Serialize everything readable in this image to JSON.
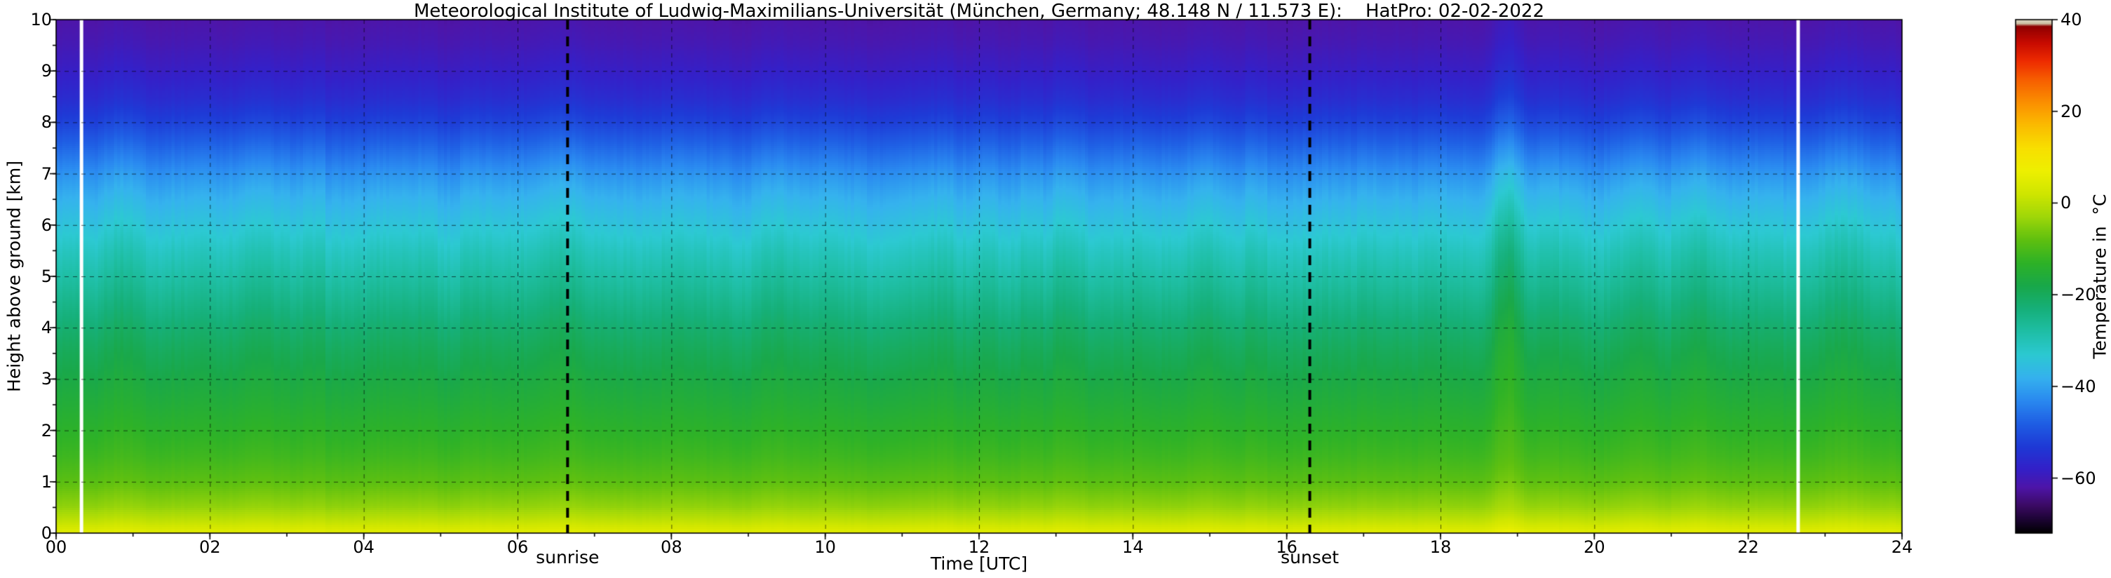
{
  "chart_data": {
    "type": "heatmap",
    "title": "Meteorological Institute of Ludwig-Maximilians-Universität (München, Germany; 48.148 N / 11.573 E):    HatPro: 02-02-2022",
    "xlabel": "Time [UTC]",
    "ylabel": "Height above ground [km]",
    "colorbar_label": "Temperature in  °C",
    "x_unit": "hours UTC",
    "x_range": [
      0,
      24
    ],
    "y_unit": "km",
    "y_range": [
      0,
      10
    ],
    "x_ticks": {
      "values": [
        0,
        2,
        4,
        6,
        8,
        10,
        12,
        14,
        16,
        18,
        20,
        22,
        24
      ],
      "labels": [
        "00",
        "02",
        "04",
        "06",
        "08",
        "10",
        "12",
        "14",
        "16",
        "18",
        "20",
        "22",
        "24"
      ]
    },
    "x_minor_step": 1,
    "y_ticks": {
      "values": [
        0,
        1,
        2,
        3,
        4,
        5,
        6,
        7,
        8,
        9,
        10
      ],
      "labels": [
        "0",
        "1",
        "2",
        "3",
        "4",
        "5",
        "6",
        "7",
        "8",
        "9",
        "10"
      ]
    },
    "y_minor_step": 0.5,
    "grid": {
      "x_step": 2,
      "y_step": 1,
      "style": "dashed"
    },
    "colorbar": {
      "range": [
        -72,
        40
      ],
      "tick_values": [
        40,
        20,
        0,
        -20,
        -40,
        -60
      ],
      "tick_labels": [
        "40",
        "20",
        "0",
        "−20",
        "−40",
        "−60"
      ]
    },
    "colormap_stops": [
      [
        -72,
        "#000000"
      ],
      [
        -69,
        "#1c0433"
      ],
      [
        -66,
        "#3b0a63"
      ],
      [
        -62,
        "#4e15a8"
      ],
      [
        -58,
        "#3420c8"
      ],
      [
        -53,
        "#1e3ad6"
      ],
      [
        -48,
        "#1f5fe4"
      ],
      [
        -43,
        "#2a8af0"
      ],
      [
        -38,
        "#35b2ee"
      ],
      [
        -33,
        "#2cc9d2"
      ],
      [
        -28,
        "#1fbfa6"
      ],
      [
        -23,
        "#16b07a"
      ],
      [
        -18,
        "#19a84a"
      ],
      [
        -13,
        "#2eb227"
      ],
      [
        -8,
        "#5fc010"
      ],
      [
        -3,
        "#9fd709"
      ],
      [
        2,
        "#cfe600"
      ],
      [
        7,
        "#eef000"
      ],
      [
        12,
        "#f8e000"
      ],
      [
        17,
        "#fbbc00"
      ],
      [
        22,
        "#fb9000"
      ],
      [
        27,
        "#f75e00"
      ],
      [
        31,
        "#ee2c00"
      ],
      [
        35,
        "#c80b00"
      ],
      [
        38.6,
        "#8f0000"
      ],
      [
        39.2,
        "#cbbfa4"
      ],
      [
        40,
        "#ded7c2"
      ]
    ],
    "profile": {
      "heights_km": [
        0,
        0.2,
        0.5,
        1,
        1.5,
        2,
        2.5,
        3,
        3.5,
        4,
        4.5,
        5,
        5.5,
        6,
        6.5,
        7,
        7.5,
        8,
        8.5,
        9,
        9.5,
        10
      ],
      "temps_c": [
        5,
        1,
        -4,
        -8.5,
        -11.5,
        -13.5,
        -15.5,
        -17.5,
        -19.5,
        -22,
        -25,
        -28,
        -31,
        -34.5,
        -38,
        -42,
        -47,
        -52,
        -56,
        -58.5,
        -60.5,
        -62
      ]
    },
    "anomalies": [
      {
        "time": 0.9,
        "width": 0.25,
        "amp": 1.6
      },
      {
        "time": 2.7,
        "width": 0.2,
        "amp": 1.2
      },
      {
        "time": 6.55,
        "width": 0.3,
        "amp": 2.2
      },
      {
        "time": 9.3,
        "width": 0.2,
        "amp": 1.0
      },
      {
        "time": 13.05,
        "width": 0.12,
        "amp": 2.0
      },
      {
        "time": 14.9,
        "width": 0.25,
        "amp": 1.4
      },
      {
        "time": 18.88,
        "width": 0.22,
        "amp": 5.5
      },
      {
        "time": 19.6,
        "width": 0.3,
        "amp": 1.5
      },
      {
        "time": 20.6,
        "width": 0.25,
        "amp": 2.2
      },
      {
        "time": 21.35,
        "width": 0.25,
        "amp": 2.0
      },
      {
        "time": 23.2,
        "width": 0.3,
        "amp": 2.4
      }
    ],
    "noise_amp": 0.9,
    "anomaly_weight": {
      "center_km": 5.5,
      "sigma_km": 2.8,
      "floor": 0.35
    },
    "annotations": [
      {
        "label": "sunrise",
        "time": 6.65
      },
      {
        "label": "sunset",
        "time": 16.3
      }
    ],
    "data_gap_times": [
      0.33,
      22.65
    ]
  }
}
